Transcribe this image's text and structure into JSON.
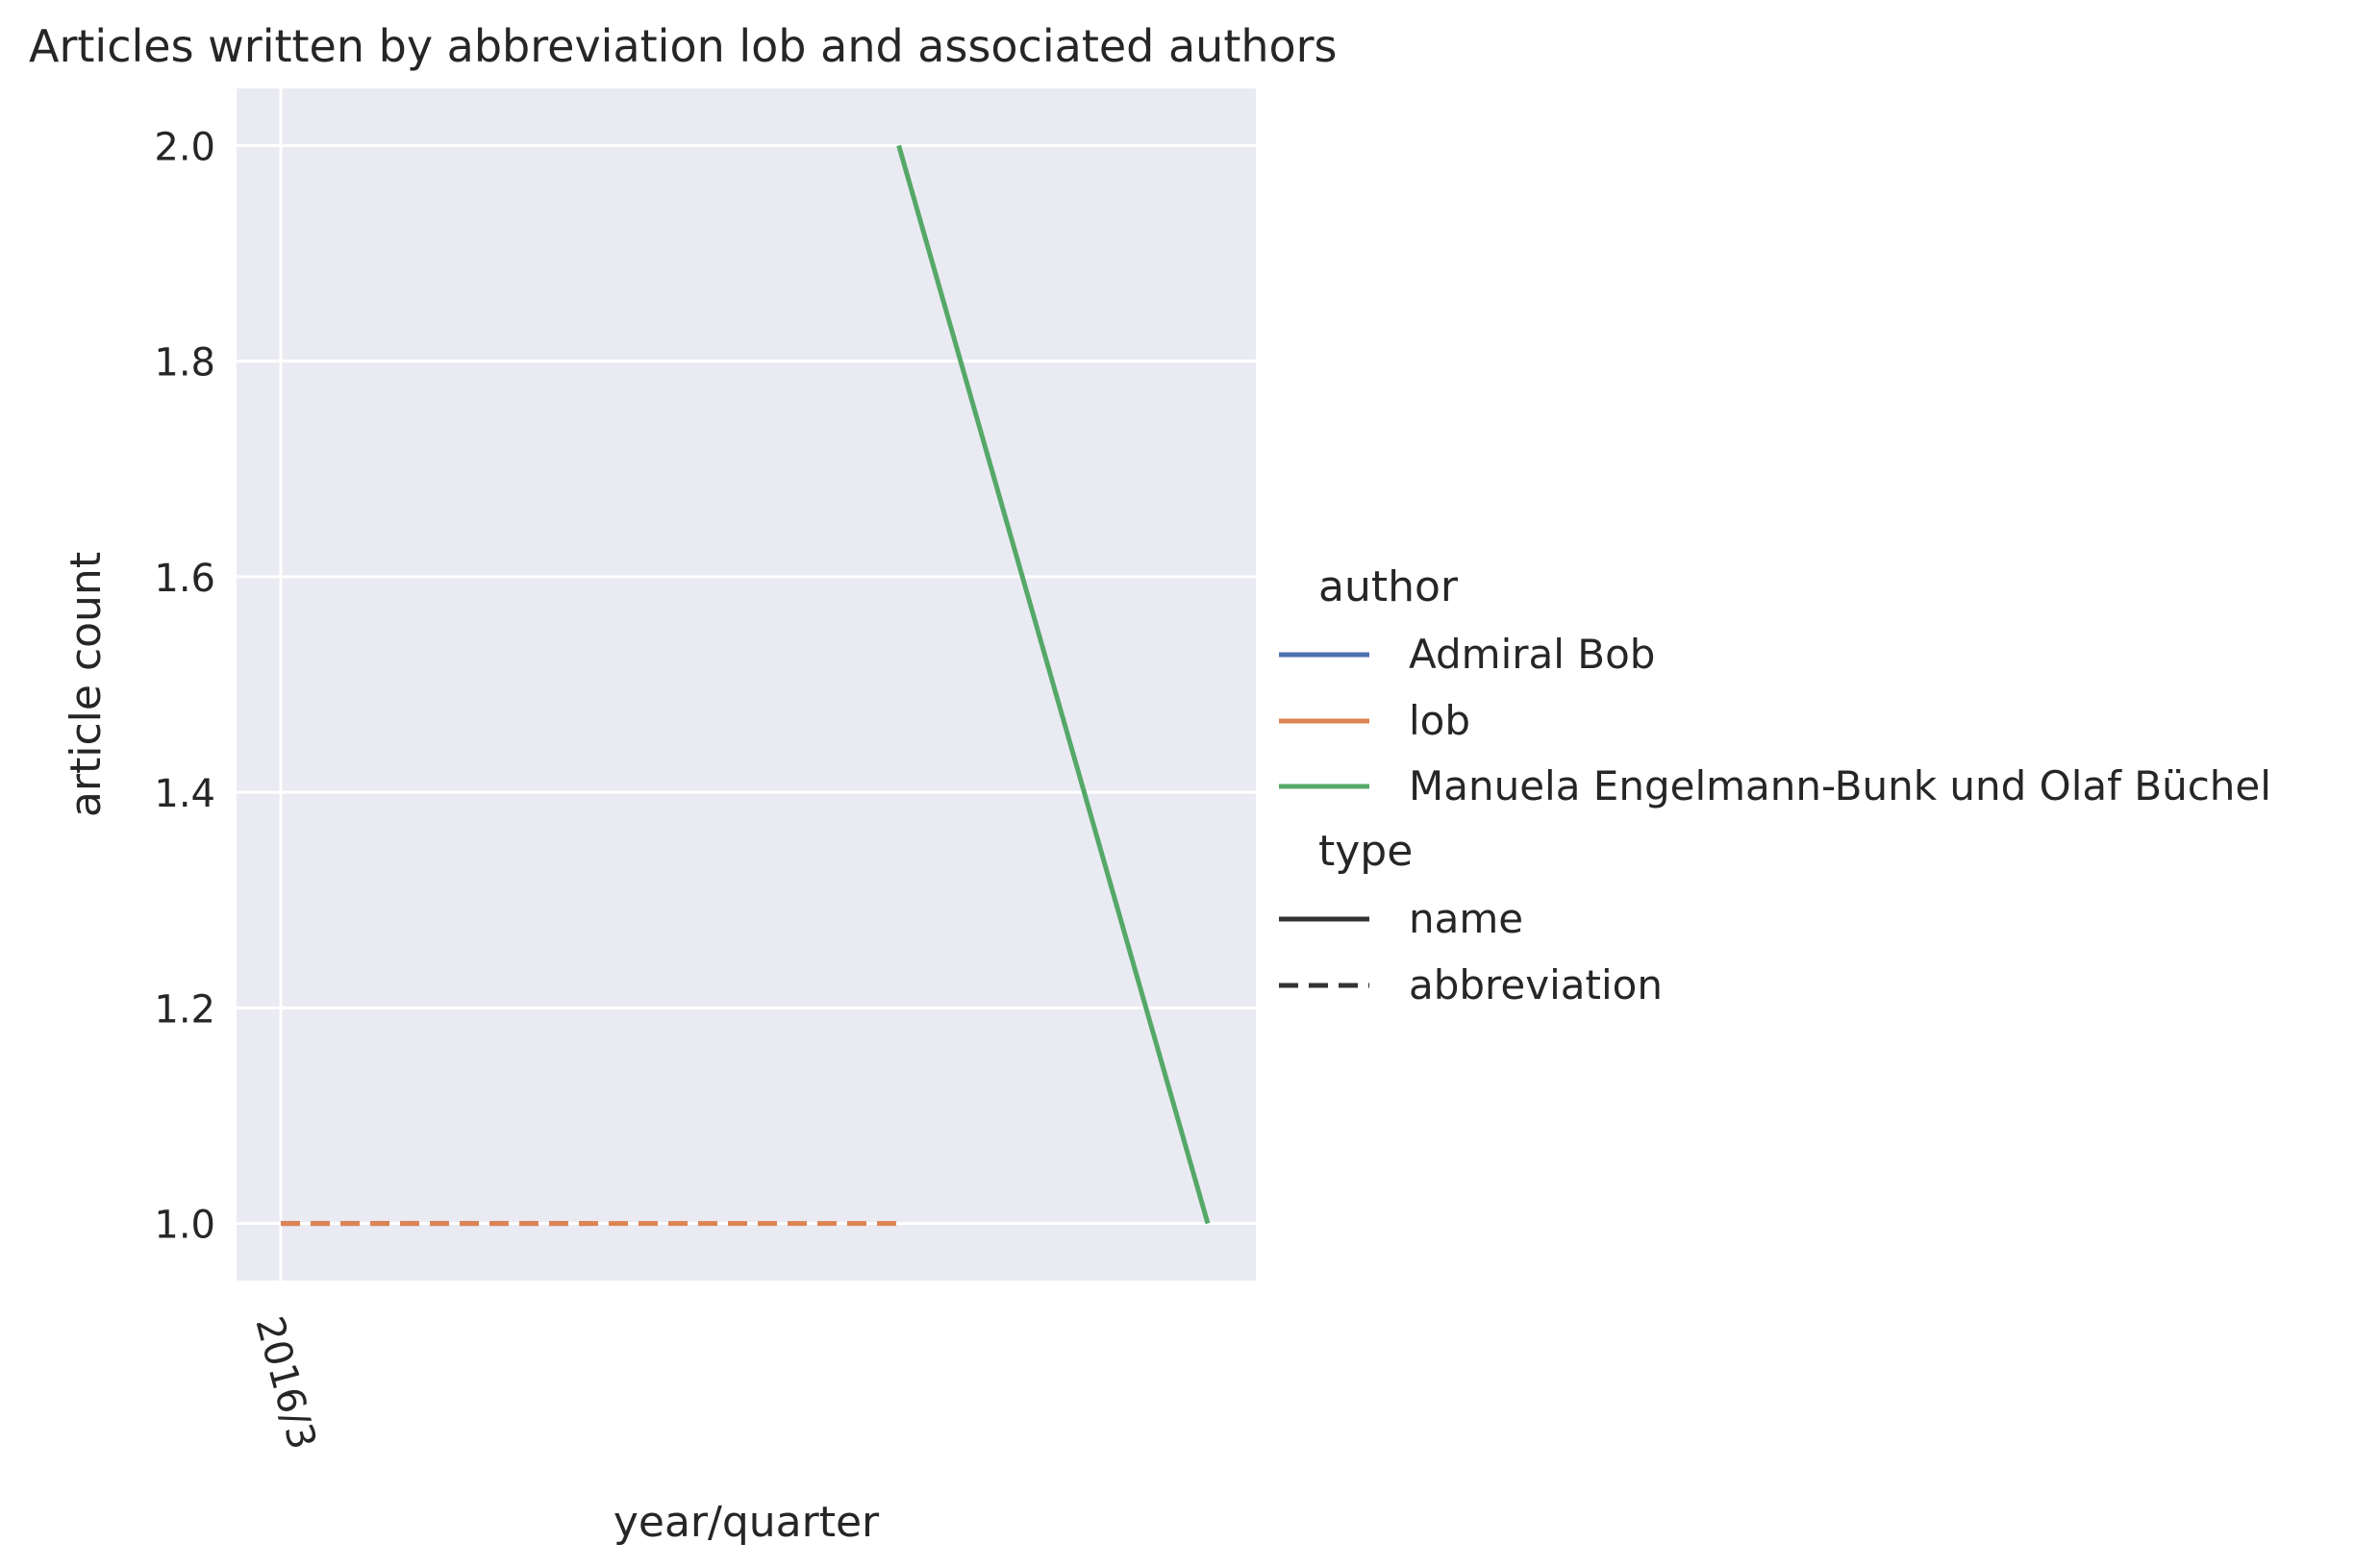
{
  "chart_data": {
    "type": "line",
    "title": "Articles written by abbreviation lob and associated authors",
    "xlabel": "year/quarter",
    "ylabel": "article count",
    "x_tick_labels": [
      "2016/3"
    ],
    "x_index_range": [
      0,
      3
    ],
    "ylim": [
      0.947,
      2.053
    ],
    "y_ticks": [
      1.0,
      1.2,
      1.4,
      1.6,
      1.8,
      2.0
    ],
    "y_tick_labels": [
      "1.0",
      "1.2",
      "1.4",
      "1.6",
      "1.8",
      "2.0"
    ],
    "grid": true,
    "legend_position": "right",
    "legend": {
      "hue_title": "author",
      "style_title": "type",
      "hue_entries": [
        "Admiral Bob",
        "lob",
        "Manuela Engelmann-Bunk und Olaf Büchel"
      ],
      "style_entries": [
        "name",
        "abbreviation"
      ]
    },
    "series": [
      {
        "name": "Admiral Bob",
        "type": "abbreviation",
        "color": "#4c72b0",
        "x": [
          0,
          1
        ],
        "y": [
          1,
          1
        ]
      },
      {
        "name": "lob",
        "type": "abbreviation",
        "color": "#dd8452",
        "x": [
          0,
          1,
          2
        ],
        "y": [
          1,
          1,
          1
        ]
      },
      {
        "name": "Manuela Engelmann-Bunk und Olaf Büchel",
        "type": "name",
        "color": "#55a868",
        "x": [
          2,
          3
        ],
        "y": [
          2,
          1
        ]
      }
    ]
  },
  "colors": {
    "plot_background": "#eaeaf2",
    "grid": "#ffffff",
    "text": "#262626",
    "style_legend_line": "#333333"
  }
}
